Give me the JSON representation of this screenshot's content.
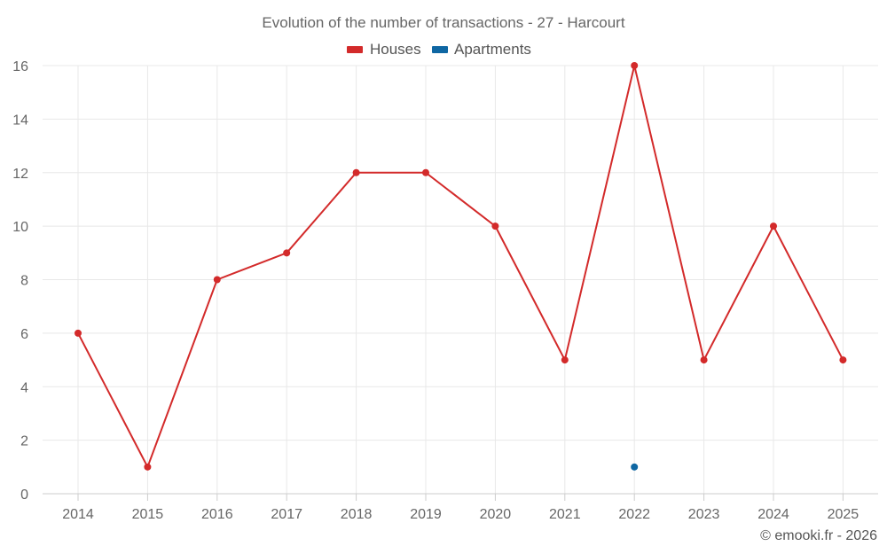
{
  "chart_data": {
    "type": "line",
    "title": "Evolution of the number of transactions - 27 - Harcourt",
    "categories": [
      "2014",
      "2015",
      "2016",
      "2017",
      "2018",
      "2019",
      "2020",
      "2021",
      "2022",
      "2023",
      "2024",
      "2025"
    ],
    "series": [
      {
        "name": "Houses",
        "color": "#d32a2a",
        "values": [
          6,
          1,
          8,
          9,
          12,
          12,
          10,
          5,
          16,
          5,
          10,
          5
        ]
      },
      {
        "name": "Apartments",
        "color": "#0f67a3",
        "values": [
          null,
          null,
          null,
          null,
          null,
          null,
          null,
          null,
          1,
          null,
          null,
          null
        ]
      }
    ],
    "ylim": [
      0,
      16
    ],
    "yticks": [
      0,
      2,
      4,
      6,
      8,
      10,
      12,
      14,
      16
    ],
    "xlabel": "",
    "ylabel": "",
    "grid": true,
    "legend": "top-center"
  },
  "credit": "© emooki.fr - 2026"
}
